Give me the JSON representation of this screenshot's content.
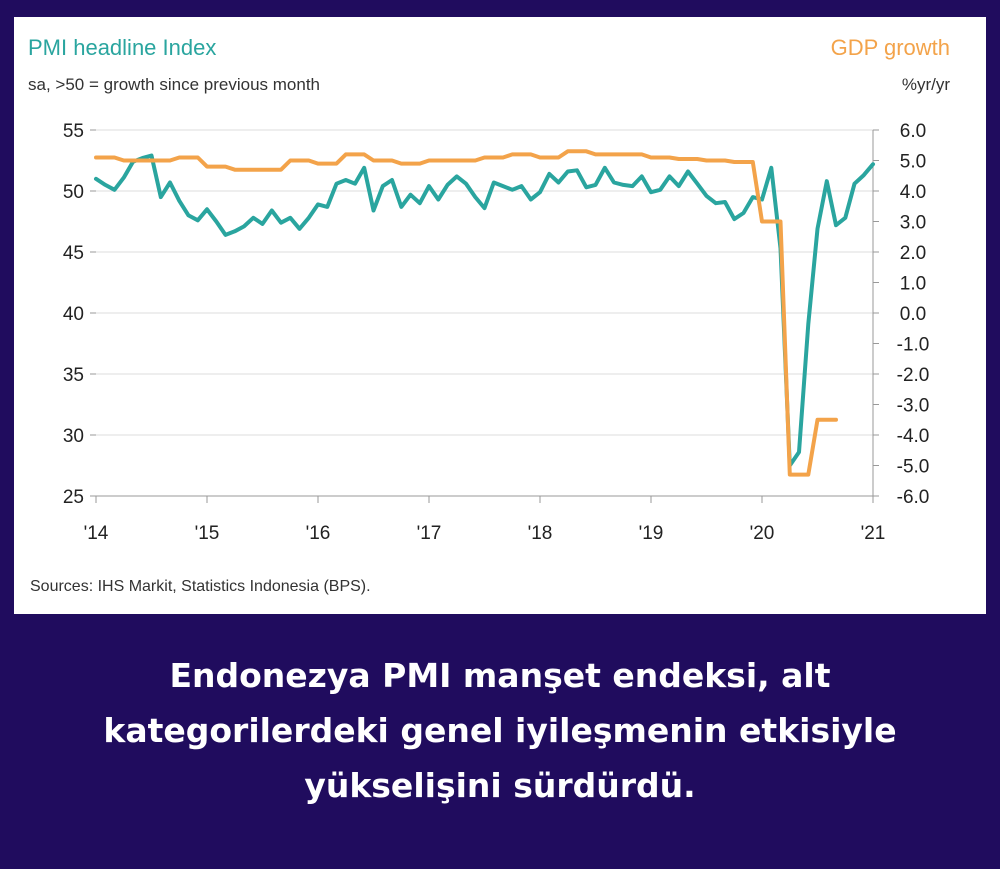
{
  "caption": "Endonezya PMI manşet endeksi, alt kategorilerdeki genel iyileşmenin etkisiyle yükselişini sürdürdü.",
  "chart_data": {
    "type": "line",
    "title_left": "PMI headline Index",
    "subtitle_left": "sa, >50 = growth since previous month",
    "title_right": "GDP growth",
    "unit_right": "%yr/yr",
    "source": "Sources: IHS Markit, Statistics Indonesia (BPS).",
    "colors": {
      "pmi": "#2aa59f",
      "gdp": "#f3a34a",
      "grid": "#dddddd",
      "axis": "#999999"
    },
    "grid": true,
    "x_ticks": [
      "'14",
      "'15",
      "'16",
      "'17",
      "'18",
      "'19",
      "'20",
      "'21"
    ],
    "y_left": {
      "lim": [
        25,
        55
      ],
      "ticks": [
        "55",
        "50",
        "45",
        "40",
        "35",
        "30",
        "25"
      ]
    },
    "y_right": {
      "lim": [
        -6,
        6
      ],
      "ticks": [
        "6.0",
        "5.0",
        "4.0",
        "3.0",
        "2.0",
        "1.0",
        "0.0",
        "-1.0",
        "-2.0",
        "-3.0",
        "-4.0",
        "-5.0",
        "-6.0"
      ]
    },
    "series": [
      {
        "key": "pmi",
        "axis": "left",
        "start": "2014-01",
        "frequency": "monthly",
        "values": [
          51.0,
          50.5,
          50.1,
          51.1,
          52.4,
          52.7,
          52.9,
          49.5,
          50.7,
          49.2,
          48.0,
          47.6,
          48.5,
          47.5,
          46.4,
          46.7,
          47.1,
          47.8,
          47.3,
          48.4,
          47.4,
          47.8,
          46.9,
          47.8,
          48.9,
          48.7,
          50.6,
          50.9,
          50.6,
          51.9,
          48.4,
          50.4,
          50.9,
          48.7,
          49.7,
          49.0,
          50.4,
          49.3,
          50.5,
          51.2,
          50.6,
          49.5,
          48.6,
          50.7,
          50.4,
          50.1,
          50.4,
          49.3,
          49.9,
          51.4,
          50.7,
          51.6,
          51.7,
          50.3,
          50.5,
          51.9,
          50.7,
          50.5,
          50.4,
          51.2,
          49.9,
          50.1,
          51.2,
          50.4,
          51.6,
          50.6,
          49.6,
          49.0,
          49.1,
          47.7,
          48.2,
          49.5,
          49.3,
          51.9,
          45.3,
          27.5,
          28.6,
          39.1,
          46.9,
          50.8,
          47.2,
          47.8,
          50.6,
          51.3,
          52.2
        ]
      },
      {
        "key": "gdp",
        "axis": "right",
        "dates": [
          "2014-01",
          "2014-03",
          "2014-04",
          "2014-06",
          "2014-07",
          "2014-09",
          "2014-10",
          "2014-12",
          "2015-01",
          "2015-03",
          "2015-04",
          "2015-06",
          "2015-07",
          "2015-09",
          "2015-10",
          "2015-12",
          "2016-01",
          "2016-03",
          "2016-04",
          "2016-06",
          "2016-07",
          "2016-09",
          "2016-10",
          "2016-12",
          "2017-01",
          "2017-03",
          "2017-04",
          "2017-06",
          "2017-07",
          "2017-09",
          "2017-10",
          "2017-12",
          "2018-01",
          "2018-03",
          "2018-04",
          "2018-06",
          "2018-07",
          "2018-09",
          "2018-10",
          "2018-12",
          "2019-01",
          "2019-03",
          "2019-04",
          "2019-06",
          "2019-07",
          "2019-09",
          "2019-10",
          "2019-12",
          "2020-01",
          "2020-03",
          "2020-04",
          "2020-06",
          "2020-07",
          "2020-09"
        ],
        "values": [
          5.1,
          5.1,
          5.0,
          5.0,
          5.0,
          5.0,
          5.1,
          5.1,
          4.8,
          4.8,
          4.7,
          4.7,
          4.7,
          4.7,
          5.0,
          5.0,
          4.9,
          4.9,
          5.2,
          5.2,
          5.0,
          5.0,
          4.9,
          4.9,
          5.0,
          5.0,
          5.0,
          5.0,
          5.1,
          5.1,
          5.2,
          5.2,
          5.1,
          5.1,
          5.3,
          5.3,
          5.2,
          5.2,
          5.2,
          5.2,
          5.1,
          5.1,
          5.05,
          5.05,
          5.0,
          5.0,
          4.95,
          4.95,
          3.0,
          3.0,
          -5.3,
          -5.3,
          -3.5,
          -3.5
        ]
      }
    ]
  }
}
